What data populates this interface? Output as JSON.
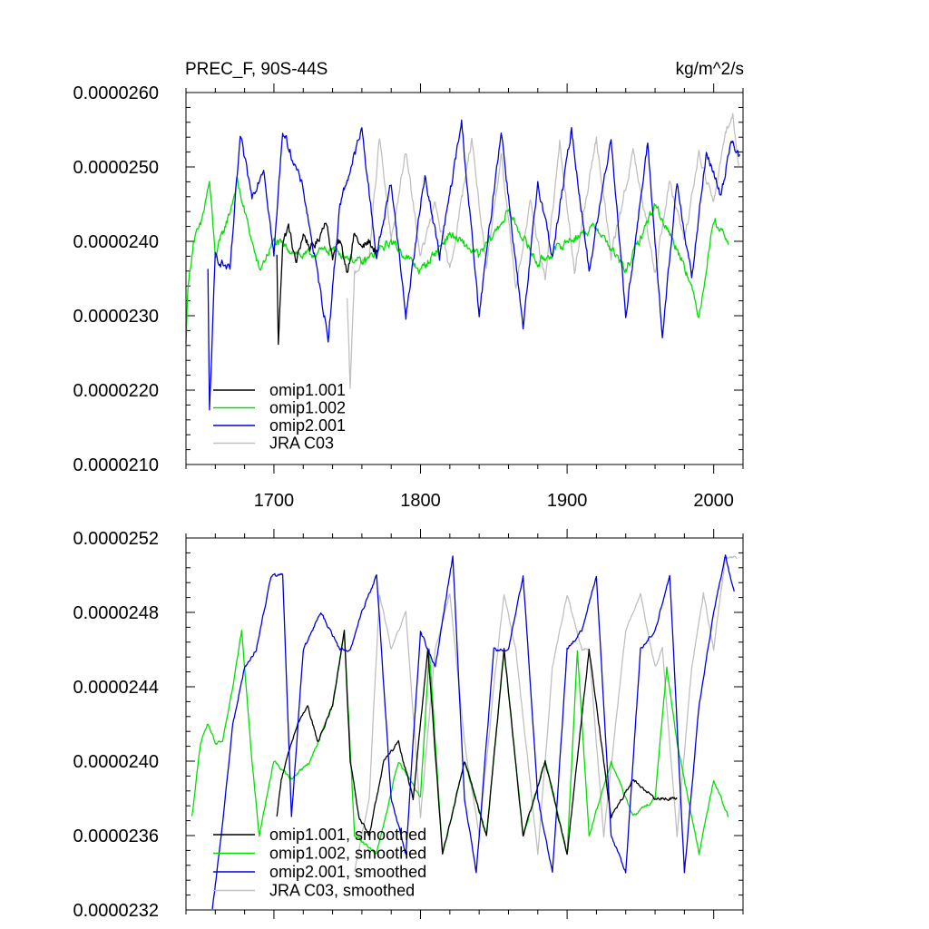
{
  "chart_data": [
    {
      "type": "line",
      "title_left": "PREC_F, 90S-44S",
      "title_right": "kg/m^2/s",
      "xlim": [
        1640,
        2020
      ],
      "ylim": [
        2.1e-05,
        2.6e-05
      ],
      "x_ticks": [
        1700,
        1800,
        1900,
        2000
      ],
      "x_tick_labels": [
        "1700",
        "1800",
        "1900",
        "2000"
      ],
      "y_ticks": [
        2.1e-05,
        2.2e-05,
        2.3e-05,
        2.4e-05,
        2.5e-05,
        2.6e-05
      ],
      "y_tick_labels": [
        "0.0000210",
        "0.0000220",
        "0.0000230",
        "0.0000240",
        "0.0000250",
        "0.0000260"
      ],
      "legend_position": "bottom-left",
      "series": [
        {
          "name": "omip1.001",
          "color": "#000000",
          "x_start": 1702,
          "x_end": 1771,
          "sample_x": [
            1702,
            1703,
            1706,
            1710,
            1715,
            1720,
            1725,
            1730,
            1735,
            1740,
            1745,
            1750,
            1755,
            1760,
            1765,
            1771
          ],
          "sample_y": [
            2.38e-05,
            2.26e-05,
            2.4e-05,
            2.42e-05,
            2.37e-05,
            2.41e-05,
            2.39e-05,
            2.4e-05,
            2.43e-05,
            2.38e-05,
            2.4e-05,
            2.36e-05,
            2.41e-05,
            2.39e-05,
            2.4e-05,
            2.38e-05
          ]
        },
        {
          "name": "omip1.002",
          "color": "#00e000",
          "x_start": 1640,
          "x_end": 2010,
          "sample_x": [
            1640,
            1641,
            1645,
            1650,
            1656,
            1660,
            1670,
            1675,
            1690,
            1700,
            1720,
            1740,
            1760,
            1780,
            1800,
            1820,
            1840,
            1860,
            1880,
            1900,
            1920,
            1940,
            1960,
            1980,
            1990,
            2000,
            2010
          ],
          "sample_y": [
            2.26e-05,
            2.33e-05,
            2.4e-05,
            2.42e-05,
            2.48e-05,
            2.38e-05,
            2.44e-05,
            2.48e-05,
            2.36e-05,
            2.4e-05,
            2.38e-05,
            2.39e-05,
            2.37e-05,
            2.4e-05,
            2.36e-05,
            2.41e-05,
            2.38e-05,
            2.44e-05,
            2.37e-05,
            2.4e-05,
            2.42e-05,
            2.36e-05,
            2.45e-05,
            2.37e-05,
            2.3e-05,
            2.43e-05,
            2.4e-05
          ]
        },
        {
          "name": "omip2.001",
          "color": "#0000e0",
          "x_start": 1655,
          "x_end": 2018,
          "sample_x": [
            1655,
            1656,
            1660,
            1670,
            1677,
            1685,
            1693,
            1700,
            1706,
            1720,
            1737,
            1745,
            1760,
            1770,
            1780,
            1790,
            1803,
            1813,
            1828,
            1840,
            1855,
            1870,
            1880,
            1890,
            1903,
            1915,
            1930,
            1940,
            1955,
            1965,
            1975,
            1985,
            1995,
            2005,
            2012,
            2018
          ],
          "sample_y": [
            2.36e-05,
            2.17e-05,
            2.38e-05,
            2.36e-05,
            2.54e-05,
            2.46e-05,
            2.5e-05,
            2.38e-05,
            2.55e-05,
            2.47e-05,
            2.27e-05,
            2.45e-05,
            2.55e-05,
            2.38e-05,
            2.48e-05,
            2.3e-05,
            2.49e-05,
            2.38e-05,
            2.56e-05,
            2.3e-05,
            2.55e-05,
            2.28e-05,
            2.48e-05,
            2.38e-05,
            2.55e-05,
            2.36e-05,
            2.54e-05,
            2.3e-05,
            2.53e-05,
            2.27e-05,
            2.48e-05,
            2.35e-05,
            2.52e-05,
            2.46e-05,
            2.54e-05,
            2.51e-05
          ]
        },
        {
          "name": "JRA C03",
          "color": "#c0c0c0",
          "x_start": 1750,
          "x_end": 2017,
          "sample_x": [
            1750,
            1752,
            1755,
            1765,
            1772,
            1780,
            1790,
            1800,
            1810,
            1820,
            1835,
            1845,
            1855,
            1865,
            1875,
            1885,
            1895,
            1905,
            1920,
            1930,
            1945,
            1960,
            1970,
            1980,
            1990,
            2000,
            2008,
            2013,
            2017
          ],
          "sample_y": [
            2.32e-05,
            2.2e-05,
            2.36e-05,
            2.38e-05,
            2.54e-05,
            2.4e-05,
            2.52e-05,
            2.38e-05,
            2.45e-05,
            2.36e-05,
            2.54e-05,
            2.36e-05,
            2.52e-05,
            2.34e-05,
            2.45e-05,
            2.35e-05,
            2.53e-05,
            2.36e-05,
            2.54e-05,
            2.38e-05,
            2.52e-05,
            2.36e-05,
            2.48e-05,
            2.4e-05,
            2.52e-05,
            2.45e-05,
            2.55e-05,
            2.57e-05,
            2.5e-05
          ]
        }
      ]
    },
    {
      "type": "line",
      "xlim": [
        1640,
        2020
      ],
      "ylim": [
        2.32e-05,
        2.52e-05
      ],
      "x_ticks": [
        1700,
        1800,
        1900,
        2000
      ],
      "y_ticks": [
        2.32e-05,
        2.36e-05,
        2.4e-05,
        2.44e-05,
        2.48e-05,
        2.52e-05
      ],
      "y_tick_labels": [
        "0.0000232",
        "0.0000236",
        "0.0000240",
        "0.0000244",
        "0.0000248",
        "0.0000252"
      ],
      "legend_position": "bottom-left",
      "series": [
        {
          "name": "omip1.001, smoothed",
          "color": "#000000",
          "x_start": 1702,
          "x_end": 1975,
          "sample_x": [
            1702,
            1705,
            1712,
            1716,
            1723,
            1730,
            1740,
            1748,
            1752,
            1758,
            1765,
            1775,
            1785,
            1795,
            1805,
            1815,
            1830,
            1845,
            1857,
            1870,
            1885,
            1900,
            1915,
            1930,
            1945,
            1960,
            1975
          ],
          "sample_y": [
            2.37e-05,
            2.39e-05,
            2.41e-05,
            2.42e-05,
            2.43e-05,
            2.41e-05,
            2.43e-05,
            2.47e-05,
            2.4e-05,
            2.37e-05,
            2.36e-05,
            2.4e-05,
            2.41e-05,
            2.38e-05,
            2.46e-05,
            2.35e-05,
            2.4e-05,
            2.36e-05,
            2.46e-05,
            2.36e-05,
            2.4e-05,
            2.35e-05,
            2.46e-05,
            2.37e-05,
            2.39e-05,
            2.38e-05,
            2.38e-05
          ]
        },
        {
          "name": "omip1.002, smoothed",
          "color": "#00e000",
          "x_start": 1644,
          "x_end": 2010,
          "sample_x": [
            1644,
            1650,
            1655,
            1660,
            1665,
            1672,
            1678,
            1685,
            1690,
            1700,
            1712,
            1725,
            1740,
            1748,
            1755,
            1770,
            1785,
            1800,
            1806,
            1815,
            1830,
            1845,
            1857,
            1870,
            1885,
            1900,
            1907,
            1915,
            1930,
            1945,
            1960,
            1968,
            1975,
            1990,
            2000,
            2010
          ],
          "sample_y": [
            2.37e-05,
            2.41e-05,
            2.42e-05,
            2.41e-05,
            2.41e-05,
            2.44e-05,
            2.47e-05,
            2.4e-05,
            2.36e-05,
            2.4e-05,
            2.39e-05,
            2.4e-05,
            2.43e-05,
            2.47e-05,
            2.36e-05,
            2.35e-05,
            2.4e-05,
            2.38e-05,
            2.46e-05,
            2.35e-05,
            2.4e-05,
            2.36e-05,
            2.46e-05,
            2.36e-05,
            2.4e-05,
            2.35e-05,
            2.46e-05,
            2.36e-05,
            2.4e-05,
            2.37e-05,
            2.38e-05,
            2.45e-05,
            2.41e-05,
            2.35e-05,
            2.39e-05,
            2.37e-05
          ]
        },
        {
          "name": "omip2.001, smoothed",
          "color": "#0000e0",
          "x_start": 1658,
          "x_end": 2014,
          "sample_x": [
            1658,
            1664,
            1672,
            1680,
            1688,
            1698,
            1706,
            1712,
            1720,
            1732,
            1745,
            1752,
            1760,
            1770,
            1780,
            1790,
            1800,
            1810,
            1822,
            1830,
            1838,
            1850,
            1860,
            1870,
            1880,
            1890,
            1900,
            1910,
            1920,
            1930,
            1940,
            1950,
            1960,
            1970,
            1980,
            1990,
            2000,
            2008,
            2014
          ],
          "sample_y": [
            2.32e-05,
            2.36e-05,
            2.42e-05,
            2.45e-05,
            2.46e-05,
            2.5e-05,
            2.5e-05,
            2.37e-05,
            2.46e-05,
            2.48e-05,
            2.46e-05,
            2.46e-05,
            2.48e-05,
            2.5e-05,
            2.38e-05,
            2.35e-05,
            2.47e-05,
            2.45e-05,
            2.51e-05,
            2.38e-05,
            2.34e-05,
            2.46e-05,
            2.46e-05,
            2.5e-05,
            2.38e-05,
            2.34e-05,
            2.46e-05,
            2.47e-05,
            2.5e-05,
            2.36e-05,
            2.34e-05,
            2.46e-05,
            2.47e-05,
            2.5e-05,
            2.34e-05,
            2.43e-05,
            2.48e-05,
            2.51e-05,
            2.49e-05
          ]
        },
        {
          "name": "JRA C03, smoothed",
          "color": "#c0c0c0",
          "x_start": 1755,
          "x_end": 2016,
          "sample_x": [
            1755,
            1765,
            1772,
            1780,
            1790,
            1800,
            1810,
            1820,
            1830,
            1840,
            1850,
            1857,
            1865,
            1880,
            1890,
            1900,
            1910,
            1915,
            1925,
            1940,
            1950,
            1960,
            1965,
            1975,
            1985,
            1993,
            2000,
            2008,
            2016
          ],
          "sample_y": [
            2.34e-05,
            2.38e-05,
            2.49e-05,
            2.46e-05,
            2.48e-05,
            2.37e-05,
            2.46e-05,
            2.49e-05,
            2.41e-05,
            2.36e-05,
            2.44e-05,
            2.49e-05,
            2.46e-05,
            2.35e-05,
            2.45e-05,
            2.49e-05,
            2.46e-05,
            2.46e-05,
            2.36e-05,
            2.47e-05,
            2.49e-05,
            2.45e-05,
            2.46e-05,
            2.36e-05,
            2.45e-05,
            2.49e-05,
            2.46e-05,
            2.51e-05,
            2.51e-05
          ]
        }
      ]
    }
  ]
}
